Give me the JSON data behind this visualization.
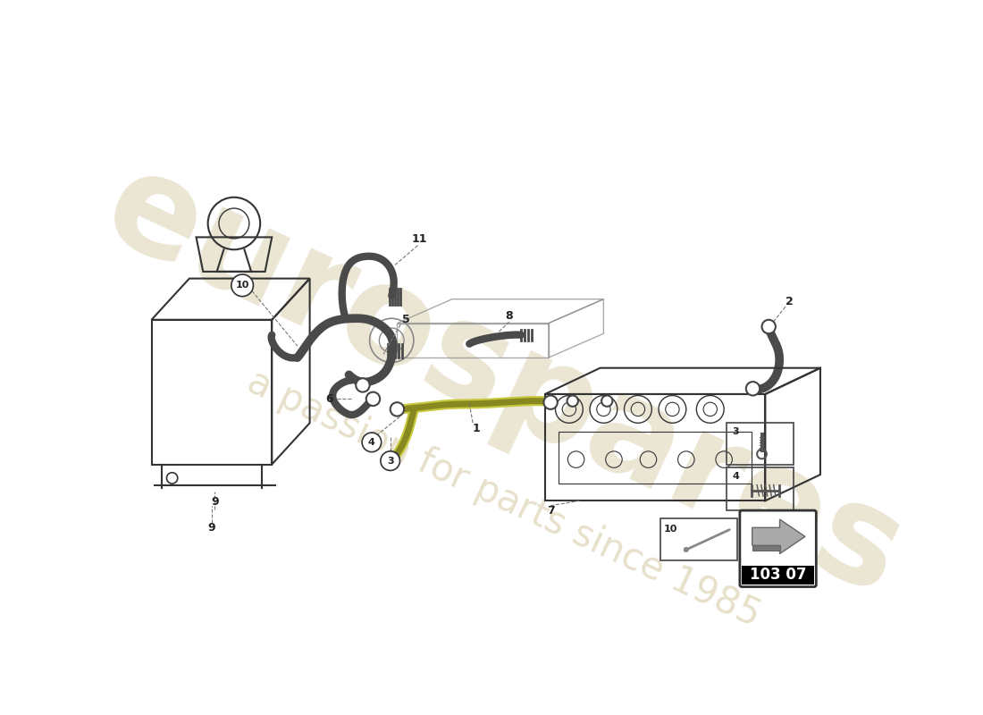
{
  "background_color": "#ffffff",
  "line_color": "#333333",
  "part_number": "103 07",
  "watermark_text1": "eurospares",
  "watermark_text2": "a passion for parts since 1985",
  "watermark_color1": "#d4c8a0",
  "watermark_color2": "#d4c8a0"
}
